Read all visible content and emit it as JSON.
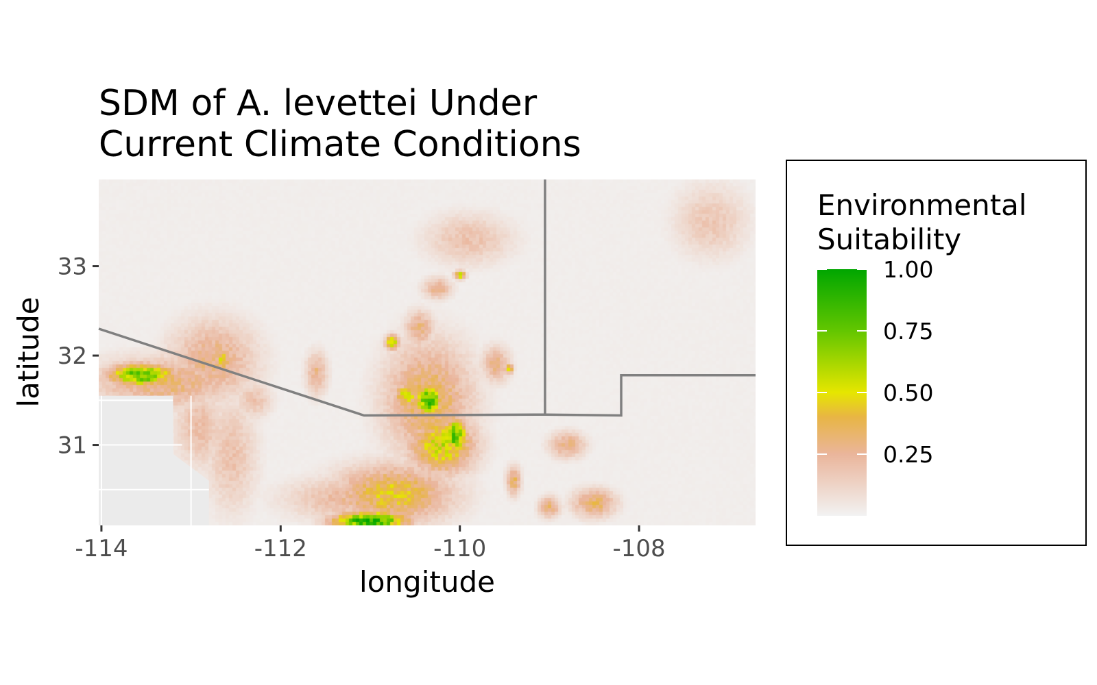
{
  "chart_data": {
    "type": "heatmap",
    "title_lines": [
      "SDM of A. levettei Under",
      "Current Climate Conditions"
    ],
    "xlabel": "longitude",
    "ylabel": "latitude",
    "xlim": [
      -114.03,
      -106.7
    ],
    "ylim": [
      30.1,
      33.97
    ],
    "x_ticks": [
      {
        "value": -114,
        "label": "-114"
      },
      {
        "value": -112,
        "label": "-112"
      },
      {
        "value": -110,
        "label": "-110"
      },
      {
        "value": -108,
        "label": "-108"
      }
    ],
    "y_ticks": [
      {
        "value": 33,
        "label": "33"
      },
      {
        "value": 32,
        "label": "32"
      },
      {
        "value": 31,
        "label": "31"
      }
    ],
    "legend": {
      "title_lines": [
        "Environmental",
        "Suitability"
      ],
      "placement": "right",
      "range": [
        0,
        1
      ],
      "breaks": [
        {
          "value": 1.0,
          "label": "1.00"
        },
        {
          "value": 0.75,
          "label": "0.75"
        },
        {
          "value": 0.5,
          "label": "0.50"
        },
        {
          "value": 0.25,
          "label": "0.25"
        }
      ],
      "colors": [
        {
          "value": 0.0,
          "color": "#f2f2f2"
        },
        {
          "value": 0.25,
          "color": "#eab59b"
        },
        {
          "value": 0.4,
          "color": "#e8b545"
        },
        {
          "value": 0.5,
          "color": "#e6e600"
        },
        {
          "value": 0.75,
          "color": "#63c600"
        },
        {
          "value": 1.0,
          "color": "#00a600"
        }
      ]
    },
    "na_color": "#ebebeb",
    "boundary_color": "#808080",
    "boundaries": [
      [
        [
          -114.03,
          32.3
        ],
        [
          -111.07,
          31.33
        ],
        [
          -109.05,
          31.34
        ],
        [
          -108.2,
          31.33
        ],
        [
          -108.2,
          31.78
        ],
        [
          -106.7,
          31.78
        ]
      ],
      [
        [
          -109.05,
          33.97
        ],
        [
          -109.05,
          31.34
        ]
      ]
    ],
    "suitability_hotspots": [
      {
        "lon": -113.55,
        "lat": 31.78,
        "rx": 0.45,
        "ry": 0.15,
        "value": 0.82
      },
      {
        "lon": -113.3,
        "lat": 31.7,
        "rx": 1.0,
        "ry": 0.35,
        "value": 0.32
      },
      {
        "lon": -112.75,
        "lat": 31.95,
        "rx": 0.6,
        "ry": 0.55,
        "value": 0.3
      },
      {
        "lon": -112.65,
        "lat": 31.95,
        "rx": 0.1,
        "ry": 0.12,
        "value": 0.55
      },
      {
        "lon": -112.9,
        "lat": 31.2,
        "rx": 0.35,
        "ry": 0.55,
        "value": 0.22
      },
      {
        "lon": -110.35,
        "lat": 31.5,
        "rx": 0.6,
        "ry": 0.8,
        "value": 0.38
      },
      {
        "lon": -110.35,
        "lat": 31.5,
        "rx": 0.18,
        "ry": 0.2,
        "value": 0.88
      },
      {
        "lon": -110.05,
        "lat": 31.1,
        "rx": 0.15,
        "ry": 0.25,
        "value": 0.82
      },
      {
        "lon": -110.2,
        "lat": 31.0,
        "rx": 0.45,
        "ry": 0.4,
        "value": 0.55
      },
      {
        "lon": -110.6,
        "lat": 31.55,
        "rx": 0.15,
        "ry": 0.15,
        "value": 0.6
      },
      {
        "lon": -110.75,
        "lat": 30.45,
        "rx": 0.8,
        "ry": 0.4,
        "value": 0.45
      },
      {
        "lon": -111.0,
        "lat": 30.15,
        "rx": 0.5,
        "ry": 0.12,
        "value": 0.95
      },
      {
        "lon": -111.2,
        "lat": 30.4,
        "rx": 0.9,
        "ry": 0.3,
        "value": 0.25
      },
      {
        "lon": -110.45,
        "lat": 32.3,
        "rx": 0.2,
        "ry": 0.25,
        "value": 0.3
      },
      {
        "lon": -110.75,
        "lat": 32.15,
        "rx": 0.1,
        "ry": 0.1,
        "value": 0.6
      },
      {
        "lon": -110.25,
        "lat": 32.75,
        "rx": 0.2,
        "ry": 0.15,
        "value": 0.28
      },
      {
        "lon": -110.0,
        "lat": 32.9,
        "rx": 0.08,
        "ry": 0.06,
        "value": 0.55
      },
      {
        "lon": -111.6,
        "lat": 31.8,
        "rx": 0.15,
        "ry": 0.3,
        "value": 0.28
      },
      {
        "lon": -109.6,
        "lat": 31.9,
        "rx": 0.2,
        "ry": 0.25,
        "value": 0.28
      },
      {
        "lon": -109.45,
        "lat": 31.85,
        "rx": 0.06,
        "ry": 0.06,
        "value": 0.55
      },
      {
        "lon": -108.8,
        "lat": 31.0,
        "rx": 0.25,
        "ry": 0.18,
        "value": 0.3
      },
      {
        "lon": -108.5,
        "lat": 30.35,
        "rx": 0.3,
        "ry": 0.2,
        "value": 0.35
      },
      {
        "lon": -109.0,
        "lat": 30.3,
        "rx": 0.15,
        "ry": 0.15,
        "value": 0.32
      },
      {
        "lon": -109.4,
        "lat": 30.6,
        "rx": 0.1,
        "ry": 0.2,
        "value": 0.35
      },
      {
        "lon": -109.9,
        "lat": 33.3,
        "rx": 0.6,
        "ry": 0.35,
        "value": 0.2
      },
      {
        "lon": -107.2,
        "lat": 33.5,
        "rx": 0.5,
        "ry": 0.5,
        "value": 0.18
      },
      {
        "lon": -112.55,
        "lat": 30.9,
        "rx": 0.35,
        "ry": 0.8,
        "value": 0.2
      },
      {
        "lon": -112.3,
        "lat": 31.5,
        "rx": 0.25,
        "ry": 0.25,
        "value": 0.2
      }
    ],
    "unmodeled_area": [
      [
        -114.03,
        30.1
      ],
      [
        -114.03,
        31.55
      ],
      [
        -113.2,
        31.55
      ],
      [
        -113.2,
        30.9
      ],
      [
        -112.8,
        30.6
      ],
      [
        -112.8,
        30.1
      ]
    ],
    "unmodeled_grid_lon": [
      -114,
      -113
    ],
    "unmodeled_grid_lat": [
      31.5,
      31.0,
      30.5
    ]
  }
}
